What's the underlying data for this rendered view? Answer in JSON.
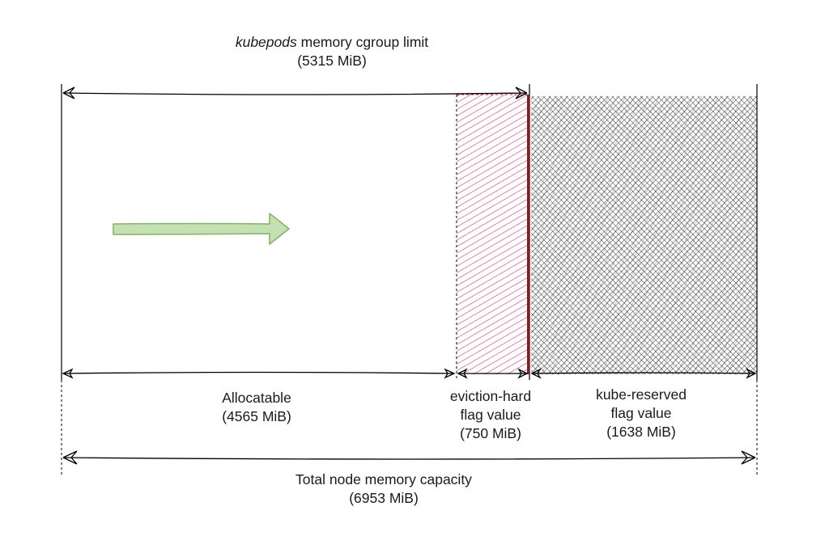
{
  "diagram": {
    "top_label": {
      "italic_word": "kubepods",
      "rest": " memory cgroup limit",
      "value": "(5315 MiB)"
    },
    "allocatable": {
      "name": "Allocatable",
      "value": "(4565 MiB)"
    },
    "eviction_hard": {
      "line1": "eviction-hard",
      "line2": "flag value",
      "value": "(750 MiB)"
    },
    "kube_reserved": {
      "line1": "kube-reserved",
      "line2": "flag value",
      "value": "(1638 MiB)"
    },
    "total": {
      "name": "Total node memory capacity",
      "value": "(6953 MiB)"
    },
    "colors": {
      "line": "#000000",
      "eviction_hatch": "#c2185b",
      "divider": "#8b1a1a",
      "reserved_hatch": "#000000",
      "arrow_fill": "#c5e0b3",
      "arrow_stroke": "#82b366"
    }
  }
}
